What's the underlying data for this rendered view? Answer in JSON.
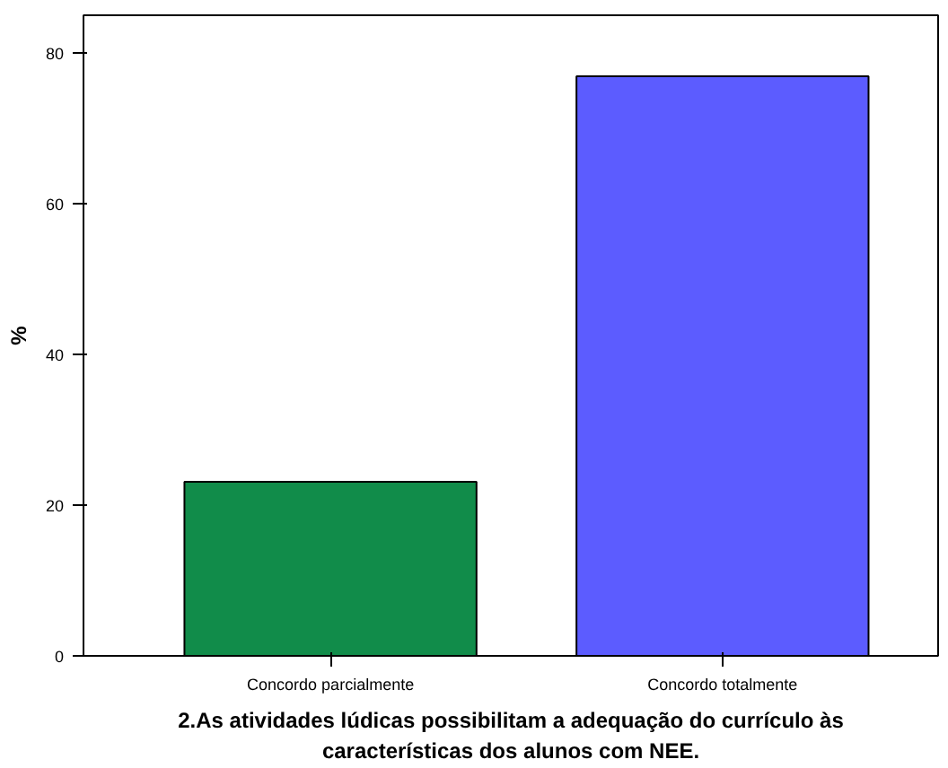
{
  "chart_data": {
    "type": "bar",
    "xlabel": "2.As atividades lúdicas possibilitam a adequação do currículo às\ncaracterísticas dos alunos com NEE.",
    "ylabel": "%",
    "categories": [
      "Concordo parcialmente",
      "Concordo totalmente"
    ],
    "values": [
      23.1,
      76.9
    ],
    "colors": [
      "#118c4a",
      "#5c5cff"
    ],
    "ylim": [
      0,
      85
    ],
    "yticks": [
      0,
      20,
      40,
      60,
      80
    ],
    "grid": false
  }
}
